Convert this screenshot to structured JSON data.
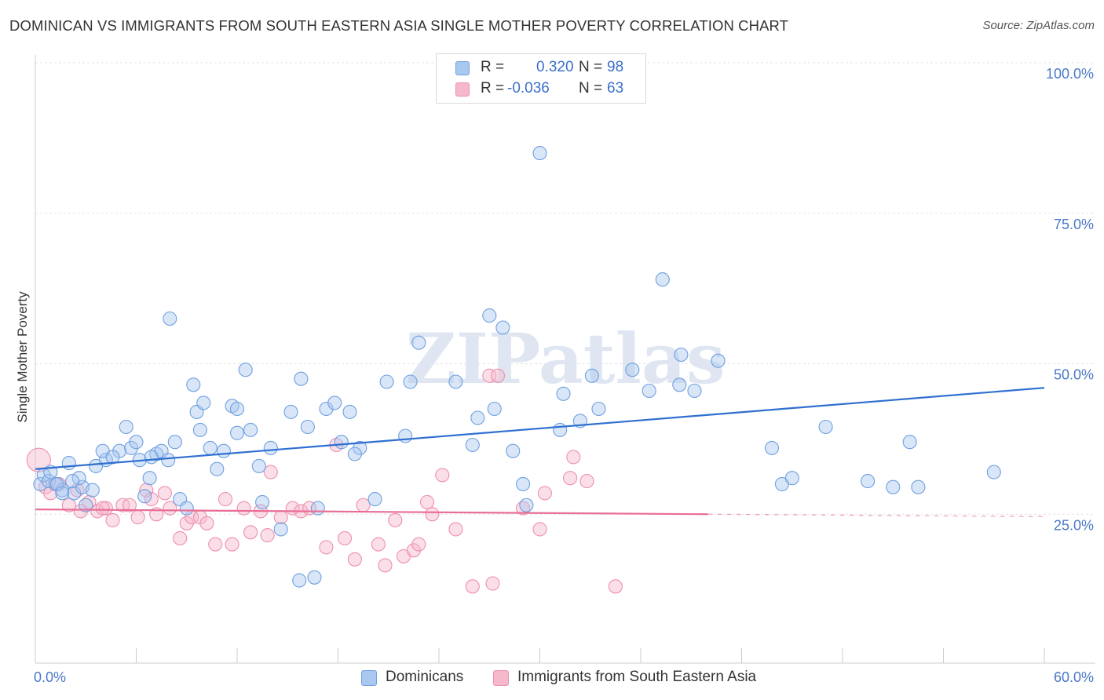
{
  "title": "DOMINICAN VS IMMIGRANTS FROM SOUTH EASTERN ASIA SINGLE MOTHER POVERTY CORRELATION CHART",
  "source": "Source: ZipAtlas.com",
  "watermark": "ZIPatlas",
  "legend": {
    "rows": [
      {
        "r_label": "R =",
        "r_value": "0.320",
        "n_label": "N =",
        "n_value": "98",
        "color": "#a9c8f0"
      },
      {
        "r_label": "R =",
        "r_value": "-0.036",
        "n_label": "N =",
        "n_value": "63",
        "color": "#f6b9cc"
      }
    ]
  },
  "bottom_legend": {
    "series1": "Dominicans",
    "series2": "Immigrants from South Eastern Asia"
  },
  "chart_data": {
    "type": "scatter",
    "title": "DOMINICAN VS IMMIGRANTS FROM SOUTH EASTERN ASIA SINGLE MOTHER POVERTY CORRELATION CHART",
    "xlabel": "",
    "ylabel": "Single Mother Poverty",
    "xlim": [
      0,
      60
    ],
    "ylim": [
      0,
      100
    ],
    "x_tick_labels": [
      "0.0%",
      "60.0%"
    ],
    "y_tick_values": [
      25,
      50,
      75,
      100
    ],
    "y_tick_labels": [
      "25.0%",
      "50.0%",
      "75.0%",
      "100.0%"
    ],
    "grid": true,
    "legend_position": "top-center",
    "series": [
      {
        "name": "Dominicans",
        "color": "#6fa0e0",
        "fill": "#a9c8f0",
        "line_color": "#2f6fd0",
        "trend": {
          "x": [
            0,
            60
          ],
          "y": [
            32.5,
            46.0
          ]
        },
        "points": [
          [
            0.3,
            30.0
          ],
          [
            0.5,
            31.5
          ],
          [
            0.8,
            30.5
          ],
          [
            1.2,
            30.0
          ],
          [
            1.6,
            29.0
          ],
          [
            2.0,
            33.5
          ],
          [
            2.3,
            28.5
          ],
          [
            2.8,
            29.5
          ],
          [
            2.6,
            31.0
          ],
          [
            2.2,
            30.5
          ],
          [
            3.4,
            29.0
          ],
          [
            3.0,
            26.5
          ],
          [
            4.2,
            34.0
          ],
          [
            5.0,
            35.5
          ],
          [
            4.0,
            35.5
          ],
          [
            4.6,
            34.5
          ],
          [
            5.4,
            39.5
          ],
          [
            5.7,
            36.0
          ],
          [
            6.0,
            37.0
          ],
          [
            6.2,
            34.0
          ],
          [
            6.5,
            28.0
          ],
          [
            6.8,
            31.0
          ],
          [
            7.2,
            35.0
          ],
          [
            7.5,
            35.5
          ],
          [
            7.9,
            34.0
          ],
          [
            8.3,
            37.0
          ],
          [
            8.6,
            27.5
          ],
          [
            9.0,
            26.0
          ],
          [
            9.4,
            46.5
          ],
          [
            9.6,
            42.0
          ],
          [
            10.0,
            43.5
          ],
          [
            10.4,
            36.0
          ],
          [
            10.8,
            32.5
          ],
          [
            11.2,
            35.5
          ],
          [
            11.7,
            43.0
          ],
          [
            12.0,
            38.5
          ],
          [
            12.5,
            49.0
          ],
          [
            12.8,
            39.0
          ],
          [
            13.3,
            33.0
          ],
          [
            13.5,
            27.0
          ],
          [
            14.0,
            36.0
          ],
          [
            14.6,
            22.5
          ],
          [
            15.2,
            42.0
          ],
          [
            15.8,
            47.5
          ],
          [
            16.2,
            39.5
          ],
          [
            16.8,
            26.0
          ],
          [
            17.3,
            42.5
          ],
          [
            17.8,
            43.5
          ],
          [
            18.2,
            37.0
          ],
          [
            18.7,
            42.0
          ],
          [
            19.3,
            36.0
          ],
          [
            19.0,
            35.0
          ],
          [
            20.2,
            27.5
          ],
          [
            20.9,
            47.0
          ],
          [
            22.3,
            47.0
          ],
          [
            22.8,
            53.5
          ],
          [
            25.0,
            47.0
          ],
          [
            26.0,
            36.5
          ],
          [
            26.3,
            41.0
          ],
          [
            27.0,
            58.0
          ],
          [
            27.3,
            42.5
          ],
          [
            27.8,
            56.0
          ],
          [
            28.4,
            35.5
          ],
          [
            29.0,
            30.0
          ],
          [
            29.2,
            26.5
          ],
          [
            30.0,
            85.0
          ],
          [
            31.4,
            45.0
          ],
          [
            31.2,
            39.0
          ],
          [
            32.4,
            40.5
          ],
          [
            33.1,
            48.0
          ],
          [
            33.5,
            42.5
          ],
          [
            35.5,
            49.0
          ],
          [
            36.5,
            45.5
          ],
          [
            37.3,
            64.0
          ],
          [
            38.3,
            46.5
          ],
          [
            38.4,
            51.5
          ],
          [
            39.2,
            45.5
          ],
          [
            40.6,
            50.5
          ],
          [
            43.8,
            36.0
          ],
          [
            44.4,
            30.0
          ],
          [
            45.0,
            31.0
          ],
          [
            47.0,
            39.5
          ],
          [
            49.5,
            30.5
          ],
          [
            51.0,
            29.5
          ],
          [
            52.0,
            37.0
          ],
          [
            52.5,
            29.5
          ],
          [
            57.0,
            32.0
          ],
          [
            15.7,
            14.0
          ],
          [
            16.6,
            14.5
          ],
          [
            8.0,
            57.5
          ],
          [
            1.3,
            30.0
          ],
          [
            0.9,
            32.0
          ],
          [
            1.6,
            28.5
          ],
          [
            6.9,
            34.5
          ],
          [
            12.0,
            42.5
          ],
          [
            22.0,
            38.0
          ],
          [
            3.6,
            33.0
          ],
          [
            9.8,
            39.0
          ]
        ]
      },
      {
        "name": "Immigrants from South Eastern Asia",
        "color": "#ee8fad",
        "fill": "#f6b9cc",
        "line_color": "#e86e96",
        "trend": {
          "x": [
            0,
            40
          ],
          "y": [
            25.8,
            25.0
          ]
        },
        "dash_trend": {
          "x": [
            40,
            60
          ],
          "y": [
            25.0,
            24.6
          ]
        },
        "points": [
          [
            0.2,
            34.0
          ],
          [
            0.6,
            29.5
          ],
          [
            0.9,
            28.5
          ],
          [
            1.4,
            30.0
          ],
          [
            2.0,
            26.5
          ],
          [
            2.5,
            29.0
          ],
          [
            2.7,
            25.5
          ],
          [
            3.2,
            27.0
          ],
          [
            3.7,
            25.5
          ],
          [
            4.2,
            26.0
          ],
          [
            4.6,
            24.0
          ],
          [
            5.2,
            26.5
          ],
          [
            5.6,
            26.5
          ],
          [
            6.1,
            24.5
          ],
          [
            6.6,
            29.0
          ],
          [
            6.9,
            27.5
          ],
          [
            7.2,
            25.0
          ],
          [
            7.7,
            28.5
          ],
          [
            8.0,
            26.0
          ],
          [
            8.6,
            21.0
          ],
          [
            9.0,
            23.5
          ],
          [
            9.3,
            24.5
          ],
          [
            9.8,
            24.5
          ],
          [
            10.2,
            23.5
          ],
          [
            10.7,
            20.0
          ],
          [
            11.3,
            27.5
          ],
          [
            11.7,
            20.0
          ],
          [
            12.4,
            26.0
          ],
          [
            12.8,
            22.0
          ],
          [
            13.4,
            25.5
          ],
          [
            13.8,
            21.5
          ],
          [
            14.0,
            32.0
          ],
          [
            14.6,
            24.5
          ],
          [
            15.3,
            26.0
          ],
          [
            15.8,
            25.5
          ],
          [
            16.3,
            26.0
          ],
          [
            17.3,
            19.5
          ],
          [
            17.9,
            36.5
          ],
          [
            18.4,
            21.0
          ],
          [
            19.0,
            17.5
          ],
          [
            19.5,
            26.5
          ],
          [
            20.4,
            20.0
          ],
          [
            20.8,
            16.5
          ],
          [
            21.4,
            24.0
          ],
          [
            21.9,
            18.0
          ],
          [
            22.5,
            19.0
          ],
          [
            22.8,
            20.0
          ],
          [
            23.3,
            27.0
          ],
          [
            23.6,
            25.0
          ],
          [
            24.2,
            31.5
          ],
          [
            25.0,
            22.5
          ],
          [
            26.0,
            13.0
          ],
          [
            27.0,
            48.0
          ],
          [
            27.5,
            48.0
          ],
          [
            27.2,
            13.5
          ],
          [
            29.0,
            26.0
          ],
          [
            30.0,
            22.5
          ],
          [
            30.3,
            28.5
          ],
          [
            31.8,
            31.0
          ],
          [
            32.0,
            34.5
          ],
          [
            32.8,
            30.5
          ],
          [
            34.5,
            13.0
          ],
          [
            4.0,
            26.0
          ]
        ]
      }
    ]
  }
}
